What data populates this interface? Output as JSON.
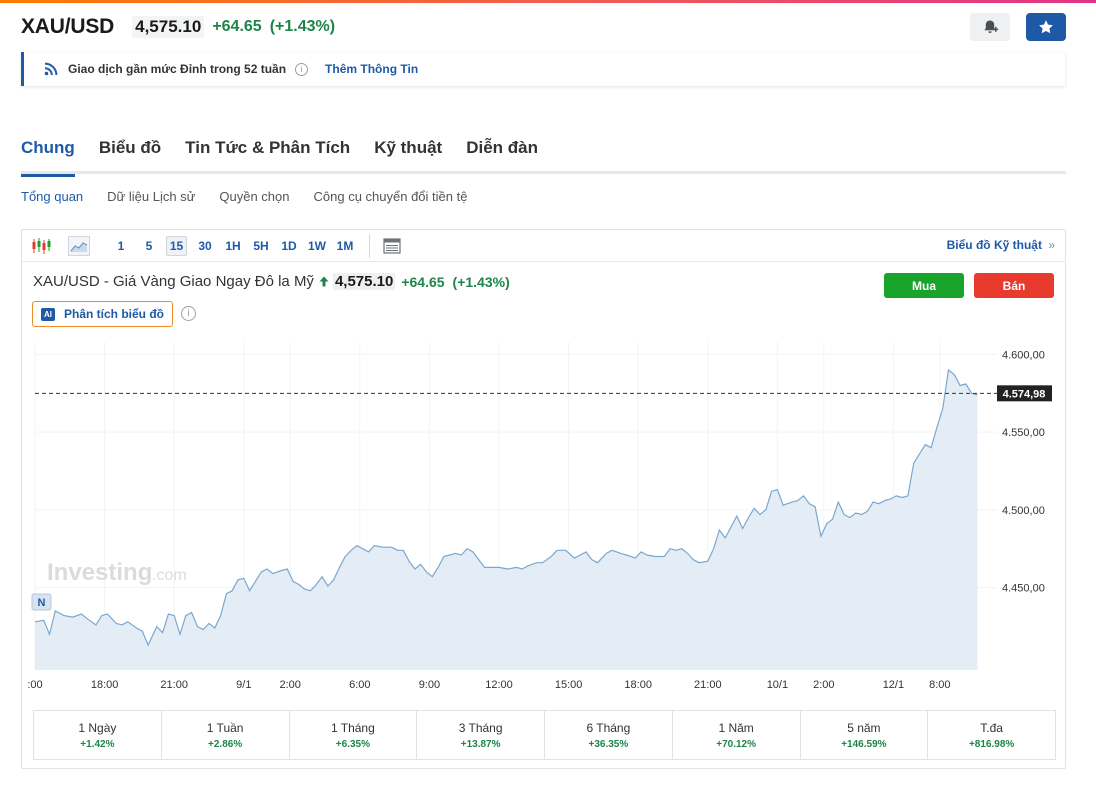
{
  "header": {
    "symbol": "XAU/USD",
    "price": "4,575.10",
    "change": "+64.65",
    "change_pct": "(+1.43%)"
  },
  "info_bar": {
    "message": "Giao dịch gần mức Đỉnh trong 52 tuần",
    "more_link": "Thêm Thông Tin"
  },
  "tabs": [
    "Chung",
    "Biểu đồ",
    "Tin Tức & Phân Tích",
    "Kỹ thuật",
    "Diễn đàn"
  ],
  "active_tab": "Chung",
  "subtabs": [
    "Tổng quan",
    "Dữ liệu Lịch sử",
    "Quyền chọn",
    "Công cụ chuyển đổi tiền tệ"
  ],
  "active_subtab": "Tổng quan",
  "toolbar": {
    "timeframes": [
      "1",
      "5",
      "15",
      "30",
      "1H",
      "5H",
      "1D",
      "1W",
      "1M"
    ],
    "selected_timeframe": "15",
    "technical_link": "Biểu đồ Kỹ thuật",
    "technical_link_chevron": "»"
  },
  "chart_header": {
    "name": "XAU/USD - Giá Vàng Giao Ngay Đô la Mỹ",
    "price": "4,575.10",
    "change": "+64.65",
    "change_pct": "(+1.43%)",
    "buy_label": "Mua",
    "sell_label": "Bán",
    "ai_badge": "AI",
    "ai_label": "Phân tích biểu đồ"
  },
  "chart_data": {
    "type": "area",
    "watermark": "Investing",
    "watermark_suffix": ".com",
    "marker_label": "N",
    "last_value": 4574.98,
    "last_value_label": "4.574,98",
    "y_ticks": [
      {
        "value": 4600,
        "label": "4.600,00"
      },
      {
        "value": 4550,
        "label": "4.550,00"
      },
      {
        "value": 4500,
        "label": "4.500,00"
      },
      {
        "value": 4450,
        "label": "4.450,00"
      }
    ],
    "ylim": [
      4397,
      4608
    ],
    "x_ticks": [
      {
        "i": 0,
        "label": ":00"
      },
      {
        "i": 24,
        "label": "18:00"
      },
      {
        "i": 48,
        "label": "21:00"
      },
      {
        "i": 72,
        "label": "9/1"
      },
      {
        "i": 88,
        "label": "2:00"
      },
      {
        "i": 112,
        "label": "6:00"
      },
      {
        "i": 136,
        "label": "9:00"
      },
      {
        "i": 160,
        "label": "12:00"
      },
      {
        "i": 184,
        "label": "15:00"
      },
      {
        "i": 208,
        "label": "18:00"
      },
      {
        "i": 232,
        "label": "21:00"
      },
      {
        "i": 256,
        "label": "10/1"
      },
      {
        "i": 272,
        "label": "2:00"
      },
      {
        "i": 296,
        "label": "12/1"
      },
      {
        "i": 312,
        "label": "8:00"
      }
    ],
    "series_points": [
      [
        0,
        4428
      ],
      [
        3,
        4429
      ],
      [
        5,
        4420
      ],
      [
        7,
        4435
      ],
      [
        10,
        4432
      ],
      [
        13,
        4431
      ],
      [
        16,
        4433
      ],
      [
        18,
        4430
      ],
      [
        21,
        4426
      ],
      [
        23,
        4432
      ],
      [
        25,
        4433
      ],
      [
        28,
        4427
      ],
      [
        30,
        4426
      ],
      [
        32,
        4428
      ],
      [
        35,
        4424
      ],
      [
        37,
        4422
      ],
      [
        39,
        4413
      ],
      [
        42,
        4425
      ],
      [
        44,
        4421
      ],
      [
        46,
        4433
      ],
      [
        48,
        4432
      ],
      [
        50,
        4420
      ],
      [
        52,
        4432
      ],
      [
        54,
        4434
      ],
      [
        56,
        4425
      ],
      [
        58,
        4423
      ],
      [
        60,
        4427
      ],
      [
        62,
        4424
      ],
      [
        64,
        4432
      ],
      [
        66,
        4446
      ],
      [
        68,
        4448
      ],
      [
        70,
        4455
      ],
      [
        72,
        4456
      ],
      [
        74,
        4448
      ],
      [
        76,
        4454
      ],
      [
        78,
        4460
      ],
      [
        80,
        4462
      ],
      [
        82,
        4459
      ],
      [
        85,
        4461
      ],
      [
        87,
        4462
      ],
      [
        89,
        4454
      ],
      [
        91,
        4452
      ],
      [
        93,
        4449
      ],
      [
        95,
        4448
      ],
      [
        97,
        4452
      ],
      [
        99,
        4457
      ],
      [
        101,
        4451
      ],
      [
        103,
        4455
      ],
      [
        105,
        4463
      ],
      [
        107,
        4470
      ],
      [
        109,
        4474
      ],
      [
        111,
        4477
      ],
      [
        113,
        4475
      ],
      [
        115,
        4473
      ],
      [
        117,
        4477
      ],
      [
        120,
        4476
      ],
      [
        123,
        4476
      ],
      [
        125,
        4474
      ],
      [
        127,
        4474
      ],
      [
        129,
        4467
      ],
      [
        131,
        4462
      ],
      [
        133,
        4465
      ],
      [
        135,
        4460
      ],
      [
        137,
        4457
      ],
      [
        139,
        4463
      ],
      [
        141,
        4470
      ],
      [
        143,
        4471
      ],
      [
        145,
        4472
      ],
      [
        147,
        4471
      ],
      [
        149,
        4475
      ],
      [
        151,
        4473
      ],
      [
        153,
        4468
      ],
      [
        155,
        4463
      ],
      [
        158,
        4463
      ],
      [
        160,
        4463
      ],
      [
        163,
        4462
      ],
      [
        166,
        4463
      ],
      [
        168,
        4462
      ],
      [
        170,
        4464
      ],
      [
        173,
        4466
      ],
      [
        175,
        4466
      ],
      [
        178,
        4470
      ],
      [
        180,
        4474
      ],
      [
        183,
        4474
      ],
      [
        186,
        4469
      ],
      [
        188,
        4471
      ],
      [
        190,
        4473
      ],
      [
        192,
        4468
      ],
      [
        194,
        4466
      ],
      [
        197,
        4472
      ],
      [
        199,
        4474
      ],
      [
        202,
        4472
      ],
      [
        204,
        4471
      ],
      [
        207,
        4469
      ],
      [
        209,
        4473
      ],
      [
        211,
        4471
      ],
      [
        214,
        4470
      ],
      [
        217,
        4470
      ],
      [
        219,
        4475
      ],
      [
        221,
        4474
      ],
      [
        223,
        4475
      ],
      [
        225,
        4472
      ],
      [
        227,
        4468
      ],
      [
        229,
        4466
      ],
      [
        232,
        4467
      ],
      [
        234,
        4475
      ],
      [
        236,
        4487
      ],
      [
        238,
        4482
      ],
      [
        240,
        4489
      ],
      [
        242,
        4496
      ],
      [
        244,
        4488
      ],
      [
        246,
        4495
      ],
      [
        248,
        4501
      ],
      [
        250,
        4497
      ],
      [
        252,
        4500
      ],
      [
        254,
        4512
      ],
      [
        256,
        4513
      ],
      [
        258,
        4503
      ],
      [
        261,
        4505
      ],
      [
        263,
        4506
      ],
      [
        265,
        4509
      ],
      [
        267,
        4504
      ],
      [
        269,
        4502
      ],
      [
        271,
        4483
      ],
      [
        273,
        4491
      ],
      [
        275,
        4494
      ],
      [
        277,
        4505
      ],
      [
        279,
        4497
      ],
      [
        281,
        4495
      ],
      [
        283,
        4498
      ],
      [
        285,
        4497
      ],
      [
        287,
        4499
      ],
      [
        289,
        4505
      ],
      [
        291,
        4504
      ],
      [
        293,
        4506
      ],
      [
        295,
        4507
      ],
      [
        297,
        4509
      ],
      [
        299,
        4508
      ],
      [
        301,
        4509
      ],
      [
        303,
        4530
      ],
      [
        305,
        4536
      ],
      [
        307,
        4542
      ],
      [
        309,
        4540
      ],
      [
        311,
        4553
      ],
      [
        313,
        4565
      ],
      [
        315,
        4590
      ],
      [
        317,
        4587
      ],
      [
        319,
        4580
      ],
      [
        321,
        4581
      ],
      [
        323,
        4575
      ],
      [
        325,
        4574
      ]
    ]
  },
  "performance": [
    {
      "label": "1 Ngày",
      "value": "+1.42%"
    },
    {
      "label": "1 Tuần",
      "value": "+2.86%"
    },
    {
      "label": "1 Tháng",
      "value": "+6.35%"
    },
    {
      "label": "3 Tháng",
      "value": "+13.87%"
    },
    {
      "label": "6 Tháng",
      "value": "+36.35%"
    },
    {
      "label": "1 Năm",
      "value": "+70.12%"
    },
    {
      "label": "5 năm",
      "value": "+146.59%"
    },
    {
      "label": "T.đa",
      "value": "+816.98%"
    }
  ],
  "colors": {
    "accent": "#1e5aa8",
    "positive": "#1e8449",
    "buy": "#1aa32a",
    "sell": "#e93a2e",
    "line": "#7ba7cf",
    "fill": "#e4edf5"
  },
  "icons": [
    "rss-icon",
    "info-icon",
    "bell-plus-icon",
    "star-icon",
    "candlestick-icon",
    "area-chart-icon",
    "table-icon",
    "arrow-up-icon",
    "ai-icon"
  ]
}
